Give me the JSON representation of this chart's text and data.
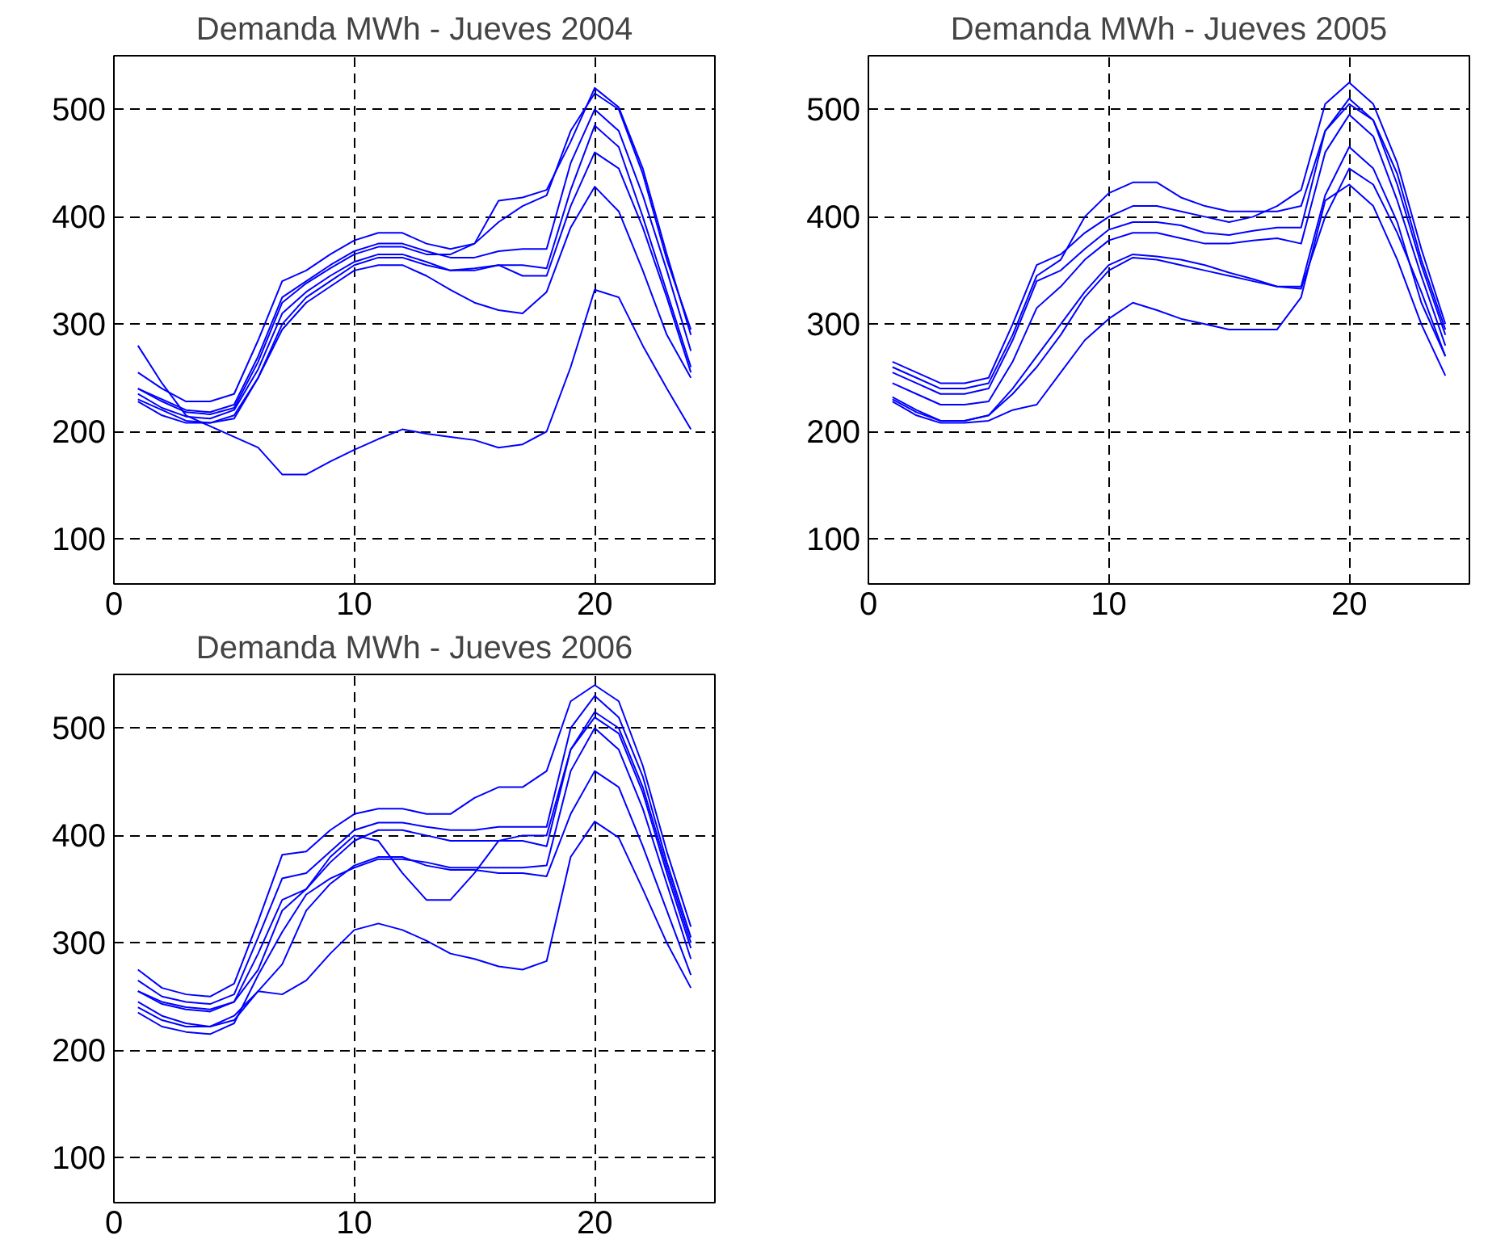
{
  "chart_data": [
    {
      "type": "line",
      "title": "Demanda MWh - Jueves 2004",
      "x": [
        1,
        2,
        3,
        4,
        5,
        6,
        7,
        8,
        9,
        10,
        11,
        12,
        13,
        14,
        15,
        16,
        17,
        18,
        19,
        20,
        21,
        22,
        23,
        24
      ],
      "xlim": [
        0,
        25
      ],
      "ylim": [
        58,
        550
      ],
      "xticks": [
        0,
        10,
        20
      ],
      "yticks": [
        100,
        200,
        300,
        400,
        500
      ],
      "grid": true,
      "series": [
        {
          "color": "#0000ff",
          "values": [
            255,
            240,
            228,
            228,
            235,
            285,
            340,
            350,
            365,
            378,
            385,
            385,
            375,
            370,
            375,
            395,
            410,
            420,
            480,
            515,
            500,
            440,
            360,
            295
          ]
        },
        {
          "color": "#0000ff",
          "values": [
            240,
            230,
            220,
            218,
            225,
            270,
            325,
            340,
            355,
            368,
            375,
            375,
            368,
            362,
            362,
            368,
            370,
            370,
            450,
            500,
            480,
            420,
            350,
            275
          ]
        },
        {
          "color": "#0000ff",
          "values": [
            228,
            215,
            208,
            208,
            215,
            250,
            300,
            325,
            340,
            355,
            362,
            362,
            355,
            350,
            350,
            355,
            355,
            352,
            425,
            485,
            465,
            400,
            330,
            260
          ]
        },
        {
          "color": "#0000ff",
          "values": [
            240,
            228,
            218,
            216,
            222,
            265,
            320,
            338,
            352,
            365,
            372,
            372,
            365,
            365,
            375,
            415,
            418,
            425,
            470,
            520,
            502,
            445,
            365,
            290
          ]
        },
        {
          "color": "#0000ff",
          "values": [
            235,
            222,
            214,
            212,
            220,
            258,
            310,
            330,
            345,
            358,
            365,
            365,
            358,
            350,
            352,
            355,
            345,
            345,
            410,
            460,
            445,
            390,
            325,
            255
          ]
        },
        {
          "color": "#0000ff",
          "values": [
            230,
            220,
            210,
            208,
            212,
            250,
            295,
            320,
            335,
            350,
            355,
            355,
            345,
            332,
            320,
            313,
            310,
            330,
            390,
            428,
            405,
            350,
            290,
            250
          ]
        },
        {
          "color": "#0000ff",
          "values": [
            280,
            245,
            215,
            205,
            195,
            185,
            160,
            160,
            172,
            183,
            193,
            202,
            198,
            195,
            192,
            185,
            188,
            200,
            260,
            332,
            325,
            280,
            240,
            202
          ]
        }
      ]
    },
    {
      "type": "line",
      "title": "Demanda MWh - Jueves 2005",
      "x": [
        1,
        2,
        3,
        4,
        5,
        6,
        7,
        8,
        9,
        10,
        11,
        12,
        13,
        14,
        15,
        16,
        17,
        18,
        19,
        20,
        21,
        22,
        23,
        24
      ],
      "xlim": [
        0,
        25
      ],
      "ylim": [
        58,
        550
      ],
      "xticks": [
        0,
        10,
        20
      ],
      "yticks": [
        100,
        200,
        300,
        400,
        500
      ],
      "grid": true,
      "series": [
        {
          "color": "#0000ff",
          "values": [
            265,
            255,
            245,
            245,
            250,
            300,
            355,
            365,
            385,
            400,
            410,
            410,
            405,
            400,
            395,
            400,
            410,
            425,
            505,
            525,
            505,
            450,
            370,
            300
          ]
        },
        {
          "color": "#0000ff",
          "values": [
            255,
            245,
            235,
            235,
            240,
            285,
            340,
            350,
            370,
            388,
            395,
            395,
            392,
            385,
            383,
            387,
            390,
            390,
            480,
            510,
            490,
            430,
            355,
            290
          ]
        },
        {
          "color": "#0000ff",
          "values": [
            245,
            235,
            225,
            225,
            228,
            265,
            315,
            335,
            360,
            378,
            385,
            385,
            380,
            375,
            375,
            378,
            380,
            375,
            460,
            495,
            475,
            415,
            345,
            280
          ]
        },
        {
          "color": "#0000ff",
          "values": [
            260,
            250,
            240,
            240,
            245,
            290,
            345,
            360,
            400,
            422,
            432,
            432,
            418,
            410,
            405,
            405,
            405,
            410,
            480,
            505,
            490,
            440,
            360,
            295
          ]
        },
        {
          "color": "#0000ff",
          "values": [
            232,
            220,
            210,
            210,
            215,
            240,
            270,
            300,
            330,
            355,
            365,
            363,
            360,
            355,
            348,
            342,
            335,
            335,
            420,
            465,
            445,
            395,
            320,
            270
          ]
        },
        {
          "color": "#0000ff",
          "values": [
            230,
            218,
            210,
            210,
            215,
            235,
            260,
            290,
            325,
            350,
            362,
            360,
            355,
            350,
            345,
            340,
            335,
            333,
            400,
            445,
            430,
            385,
            330,
            270
          ]
        },
        {
          "color": "#0000ff",
          "values": [
            228,
            215,
            208,
            208,
            210,
            220,
            225,
            255,
            285,
            305,
            320,
            313,
            305,
            300,
            295,
            295,
            295,
            325,
            415,
            430,
            410,
            360,
            300,
            252
          ]
        }
      ]
    },
    {
      "type": "line",
      "title": "Demanda MWh - Jueves 2006",
      "x": [
        1,
        2,
        3,
        4,
        5,
        6,
        7,
        8,
        9,
        10,
        11,
        12,
        13,
        14,
        15,
        16,
        17,
        18,
        19,
        20,
        21,
        22,
        23,
        24
      ],
      "xlim": [
        0,
        25
      ],
      "ylim": [
        58,
        550
      ],
      "xticks": [
        0,
        10,
        20
      ],
      "yticks": [
        100,
        200,
        300,
        400,
        500
      ],
      "grid": true,
      "series": [
        {
          "color": "#0000ff",
          "values": [
            275,
            258,
            252,
            250,
            262,
            320,
            382,
            385,
            405,
            420,
            425,
            425,
            420,
            420,
            435,
            445,
            445,
            460,
            525,
            540,
            525,
            465,
            385,
            315
          ]
        },
        {
          "color": "#0000ff",
          "values": [
            265,
            250,
            245,
            243,
            252,
            305,
            360,
            365,
            385,
            405,
            412,
            412,
            408,
            405,
            405,
            408,
            408,
            408,
            500,
            530,
            510,
            455,
            375,
            305
          ]
        },
        {
          "color": "#0000ff",
          "values": [
            255,
            243,
            238,
            236,
            245,
            290,
            340,
            350,
            375,
            395,
            405,
            405,
            400,
            395,
            395,
            395,
            395,
            390,
            480,
            510,
            495,
            440,
            365,
            295
          ]
        },
        {
          "color": "#0000ff",
          "values": [
            255,
            245,
            240,
            238,
            245,
            275,
            330,
            350,
            380,
            400,
            395,
            365,
            340,
            340,
            365,
            395,
            400,
            400,
            480,
            515,
            500,
            445,
            370,
            300
          ]
        },
        {
          "color": "#0000ff",
          "values": [
            235,
            222,
            217,
            215,
            225,
            270,
            310,
            345,
            360,
            370,
            378,
            378,
            375,
            370,
            370,
            370,
            370,
            372,
            460,
            500,
            480,
            425,
            355,
            285
          ]
        },
        {
          "color": "#0000ff",
          "values": [
            245,
            232,
            225,
            222,
            228,
            255,
            280,
            330,
            355,
            372,
            380,
            380,
            372,
            368,
            368,
            365,
            365,
            362,
            420,
            460,
            445,
            390,
            330,
            270
          ]
        },
        {
          "color": "#0000ff",
          "values": [
            240,
            228,
            222,
            222,
            232,
            255,
            252,
            265,
            290,
            312,
            318,
            312,
            302,
            290,
            285,
            278,
            275,
            283,
            380,
            413,
            398,
            350,
            300,
            258
          ]
        }
      ]
    }
  ]
}
